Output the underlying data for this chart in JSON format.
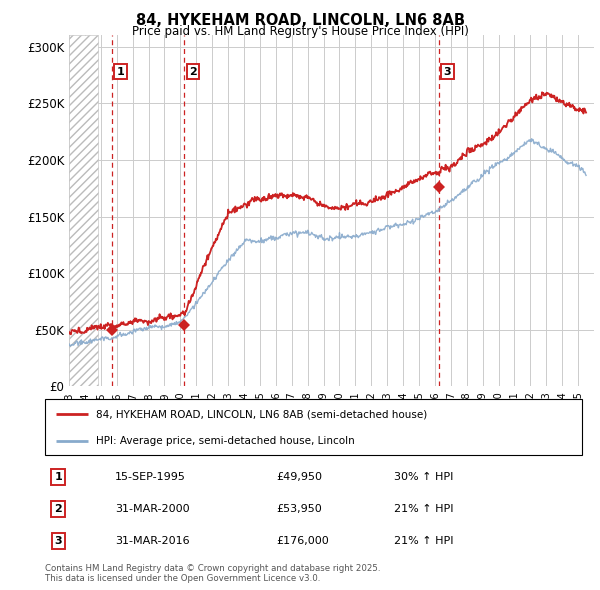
{
  "title": "84, HYKEHAM ROAD, LINCOLN, LN6 8AB",
  "subtitle": "Price paid vs. HM Land Registry's House Price Index (HPI)",
  "ylim": [
    0,
    310000
  ],
  "yticks": [
    0,
    50000,
    100000,
    150000,
    200000,
    250000,
    300000
  ],
  "ytick_labels": [
    "£0",
    "£50K",
    "£100K",
    "£150K",
    "£200K",
    "£250K",
    "£300K"
  ],
  "sale_dates": [
    1995.71,
    2000.25,
    2016.25
  ],
  "sale_prices": [
    49950,
    53950,
    176000
  ],
  "sale_labels": [
    "1",
    "2",
    "3"
  ],
  "sale_date_strings": [
    "15-SEP-1995",
    "31-MAR-2000",
    "31-MAR-2016"
  ],
  "sale_price_strings": [
    "£49,950",
    "£53,950",
    "£176,000"
  ],
  "sale_hpi_strings": [
    "30% ↑ HPI",
    "21% ↑ HPI",
    "21% ↑ HPI"
  ],
  "red_line_color": "#cc2222",
  "blue_line_color": "#88aacc",
  "dashed_line_color": "#cc2222",
  "background_color": "#ffffff",
  "grid_color": "#cccccc",
  "legend_label_red": "84, HYKEHAM ROAD, LINCOLN, LN6 8AB (semi-detached house)",
  "legend_label_blue": "HPI: Average price, semi-detached house, Lincoln",
  "footer_text": "Contains HM Land Registry data © Crown copyright and database right 2025.\nThis data is licensed under the Open Government Licence v3.0."
}
